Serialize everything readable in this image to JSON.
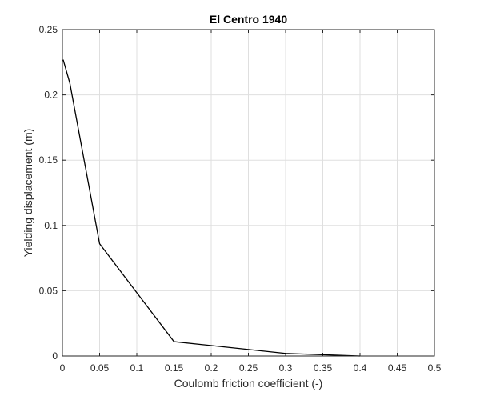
{
  "chart_data": {
    "type": "line",
    "title": "El Centro 1940",
    "xlabel": "Coulomb friction coefficient (-)",
    "ylabel": "Yielding displacement (m)",
    "xlim": [
      0,
      0.5
    ],
    "ylim": [
      0,
      0.25
    ],
    "xticks": [
      "0",
      "0.05",
      "0.1",
      "0.15",
      "0.2",
      "0.25",
      "0.3",
      "0.35",
      "0.4",
      "0.45",
      "0.5"
    ],
    "yticks": [
      "0",
      "0.05",
      "0.1",
      "0.15",
      "0.2",
      "0.25"
    ],
    "grid": true,
    "series": [
      {
        "color": "#000000",
        "x": [
          0.001,
          0.01,
          0.05,
          0.15,
          0.3,
          0.4
        ],
        "y": [
          0.227,
          0.209,
          0.086,
          0.011,
          0.002,
          0.0
        ]
      }
    ]
  }
}
